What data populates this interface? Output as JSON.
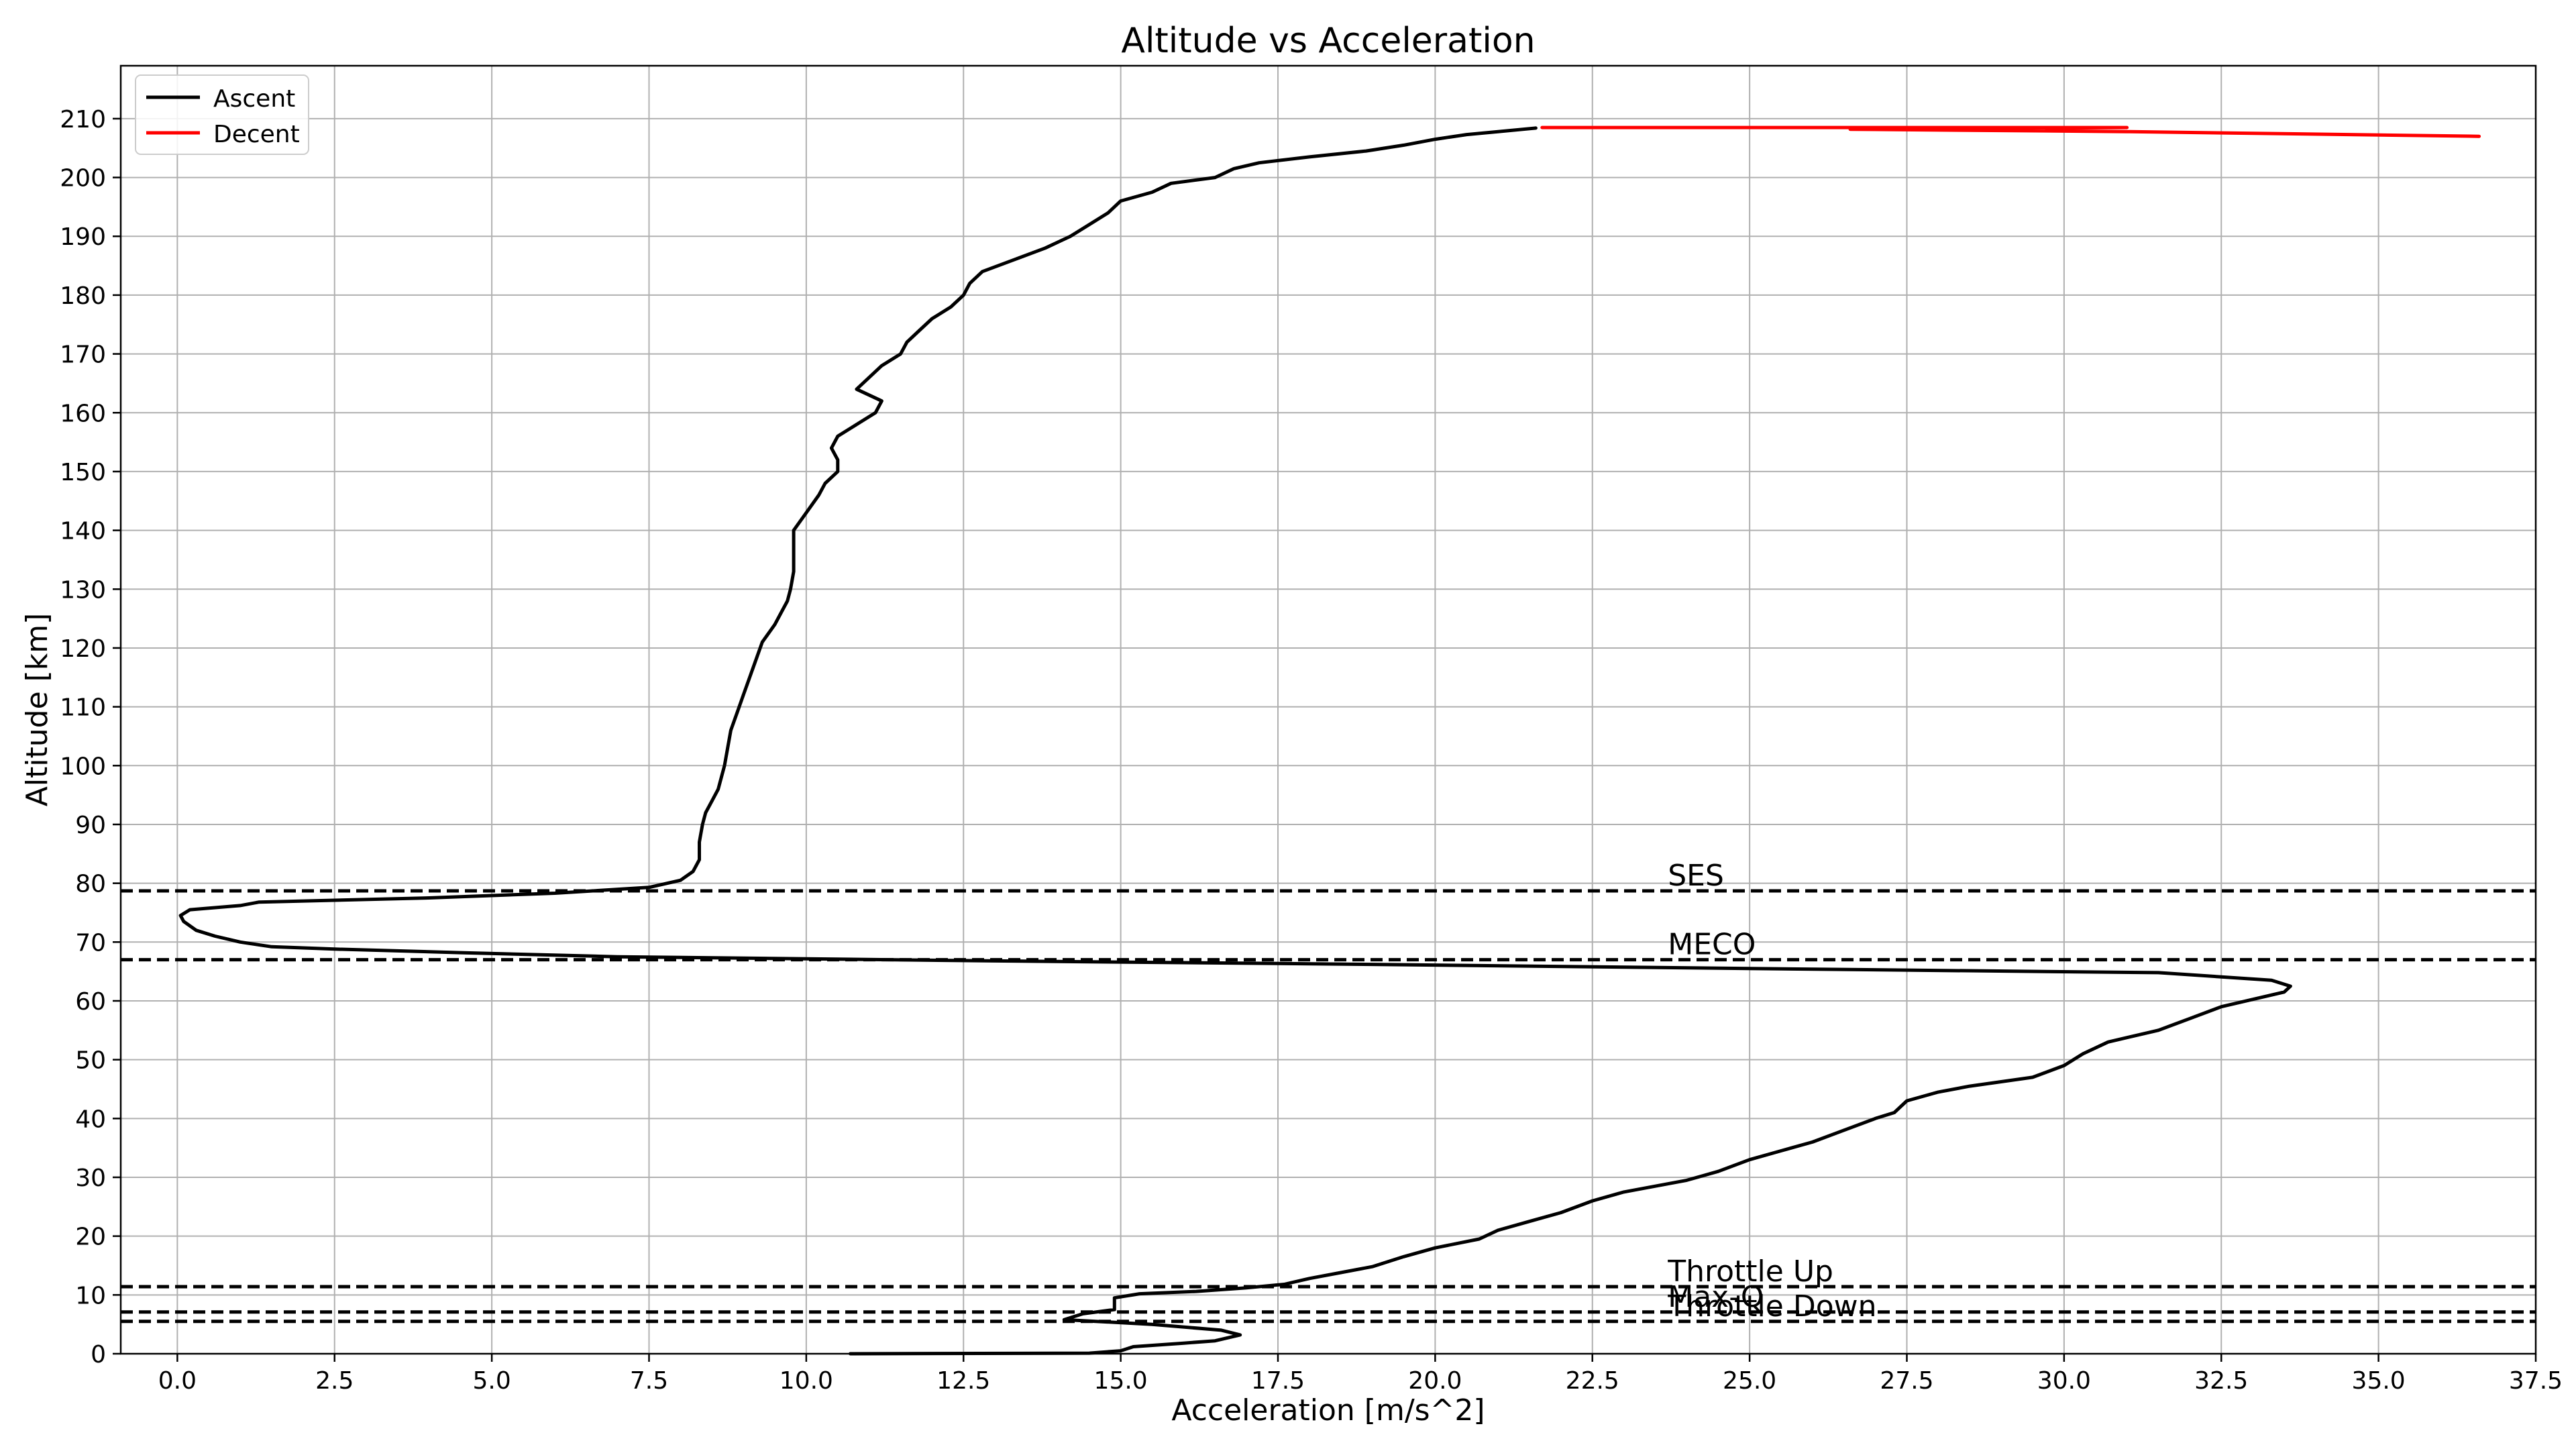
{
  "chart_data": {
    "type": "line",
    "title": "Altitude vs Acceleration",
    "xlabel": "Acceleration [m/s^2]",
    "ylabel": "Altitude [km]",
    "xlim": [
      -0.9,
      37.5
    ],
    "ylim": [
      0,
      219
    ],
    "x_ticks": [
      "0.0",
      "2.5",
      "5.0",
      "7.5",
      "10.0",
      "12.5",
      "15.0",
      "17.5",
      "20.0",
      "22.5",
      "25.0",
      "27.5",
      "30.0",
      "32.5",
      "35.0",
      "37.5"
    ],
    "x_tick_values": [
      0,
      2.5,
      5,
      7.5,
      10,
      12.5,
      15,
      17.5,
      20,
      22.5,
      25,
      27.5,
      30,
      32.5,
      35,
      37.5
    ],
    "y_ticks": [
      "0",
      "10",
      "20",
      "30",
      "40",
      "50",
      "60",
      "70",
      "80",
      "90",
      "100",
      "110",
      "120",
      "130",
      "140",
      "150",
      "160",
      "170",
      "180",
      "190",
      "200",
      "210"
    ],
    "y_tick_values": [
      0,
      10,
      20,
      30,
      40,
      50,
      60,
      70,
      80,
      90,
      100,
      110,
      120,
      130,
      140,
      150,
      160,
      170,
      180,
      190,
      200,
      210
    ],
    "grid": true,
    "legend_position": "top-left",
    "series": [
      {
        "name": "Ascent",
        "color": "#000000",
        "points": [
          [
            10.7,
            0
          ],
          [
            14.5,
            0.1
          ],
          [
            15.0,
            0.5
          ],
          [
            15.2,
            1.2
          ],
          [
            16.0,
            1.8
          ],
          [
            16.5,
            2.2
          ],
          [
            16.9,
            3.2
          ],
          [
            16.6,
            4.0
          ],
          [
            15.5,
            5.0
          ],
          [
            14.1,
            5.8
          ],
          [
            14.4,
            6.8
          ],
          [
            14.9,
            7.5
          ],
          [
            14.9,
            9.5
          ],
          [
            15.3,
            10.2
          ],
          [
            16.2,
            10.6
          ],
          [
            17.0,
            11.2
          ],
          [
            17.6,
            11.8
          ],
          [
            18.0,
            12.8
          ],
          [
            18.5,
            13.8
          ],
          [
            19.0,
            14.8
          ],
          [
            19.5,
            16.5
          ],
          [
            20.0,
            18
          ],
          [
            20.7,
            19.5
          ],
          [
            21.0,
            21
          ],
          [
            21.5,
            22.5
          ],
          [
            22.0,
            24
          ],
          [
            22.5,
            26
          ],
          [
            23.0,
            27.5
          ],
          [
            24.0,
            29.5
          ],
          [
            24.5,
            31
          ],
          [
            25.0,
            33
          ],
          [
            25.5,
            34.5
          ],
          [
            26.0,
            36
          ],
          [
            26.5,
            38
          ],
          [
            27.0,
            40
          ],
          [
            27.3,
            41
          ],
          [
            27.5,
            43
          ],
          [
            28.0,
            44.5
          ],
          [
            28.5,
            45.5
          ],
          [
            29.5,
            47
          ],
          [
            30.0,
            49
          ],
          [
            30.3,
            51
          ],
          [
            30.7,
            53
          ],
          [
            31.5,
            55
          ],
          [
            32.0,
            57
          ],
          [
            32.5,
            59
          ],
          [
            33.1,
            60.5
          ],
          [
            33.5,
            61.5
          ],
          [
            33.6,
            62.5
          ],
          [
            33.3,
            63.5
          ],
          [
            31.5,
            64.8
          ],
          [
            25.0,
            65.5
          ],
          [
            19.0,
            66.2
          ],
          [
            13.0,
            66.8
          ],
          [
            7.0,
            67.5
          ],
          [
            4.5,
            68.2
          ],
          [
            2.5,
            68.8
          ],
          [
            1.5,
            69.2
          ],
          [
            1.0,
            70.0
          ],
          [
            0.6,
            71.0
          ],
          [
            0.3,
            72.0
          ],
          [
            0.1,
            73.5
          ],
          [
            0.05,
            74.5
          ],
          [
            0.2,
            75.5
          ],
          [
            1.0,
            76.2
          ],
          [
            1.3,
            76.8
          ],
          [
            4.0,
            77.5
          ],
          [
            6.0,
            78.3
          ],
          [
            7.5,
            79.3
          ],
          [
            8.0,
            80.5
          ],
          [
            8.2,
            82
          ],
          [
            8.3,
            84
          ],
          [
            8.3,
            87
          ],
          [
            8.35,
            90
          ],
          [
            8.4,
            92
          ],
          [
            8.5,
            94
          ],
          [
            8.6,
            96
          ],
          [
            8.65,
            98
          ],
          [
            8.7,
            100
          ],
          [
            8.75,
            103
          ],
          [
            8.8,
            106
          ],
          [
            8.9,
            109
          ],
          [
            9.0,
            112
          ],
          [
            9.1,
            115
          ],
          [
            9.2,
            118
          ],
          [
            9.3,
            121
          ],
          [
            9.5,
            124
          ],
          [
            9.6,
            126
          ],
          [
            9.7,
            128
          ],
          [
            9.75,
            130
          ],
          [
            9.8,
            133
          ],
          [
            9.8,
            137
          ],
          [
            9.8,
            140
          ],
          [
            10.0,
            143
          ],
          [
            10.2,
            146
          ],
          [
            10.3,
            148
          ],
          [
            10.5,
            150
          ],
          [
            10.5,
            152
          ],
          [
            10.4,
            154
          ],
          [
            10.5,
            156
          ],
          [
            10.8,
            158
          ],
          [
            11.1,
            160
          ],
          [
            11.2,
            162
          ],
          [
            10.8,
            164
          ],
          [
            11.0,
            166
          ],
          [
            11.2,
            168
          ],
          [
            11.5,
            170
          ],
          [
            11.6,
            172
          ],
          [
            11.8,
            174
          ],
          [
            12.0,
            176
          ],
          [
            12.3,
            178
          ],
          [
            12.5,
            180
          ],
          [
            12.6,
            182
          ],
          [
            12.8,
            184
          ],
          [
            13.3,
            186
          ],
          [
            13.8,
            188
          ],
          [
            14.0,
            189
          ],
          [
            14.2,
            190
          ],
          [
            14.5,
            192
          ],
          [
            14.8,
            194
          ],
          [
            15.0,
            196
          ],
          [
            15.5,
            197.5
          ],
          [
            15.8,
            199
          ],
          [
            16.5,
            200
          ],
          [
            16.8,
            201.5
          ],
          [
            17.2,
            202.5
          ],
          [
            18.0,
            203.5
          ],
          [
            18.9,
            204.5
          ],
          [
            19.5,
            205.5
          ],
          [
            20.0,
            206.5
          ],
          [
            20.5,
            207.3
          ],
          [
            21.0,
            207.8
          ],
          [
            21.6,
            208.4
          ]
        ]
      },
      {
        "name": "Decent",
        "color": "#ff0000",
        "points": [
          [
            21.7,
            208.5
          ],
          [
            31.0,
            208.5
          ],
          [
            26.6,
            208.2
          ],
          [
            31.0,
            207.8
          ],
          [
            36.6,
            207.0
          ]
        ]
      }
    ],
    "events": [
      {
        "label": "SES",
        "y": 78.7
      },
      {
        "label": "MECO",
        "y": 67.0
      },
      {
        "label": "Throttle Up",
        "y": 11.4
      },
      {
        "label": "Max-Q",
        "y": 7.1
      },
      {
        "label": "Throttle Down",
        "y": 5.5
      }
    ]
  }
}
